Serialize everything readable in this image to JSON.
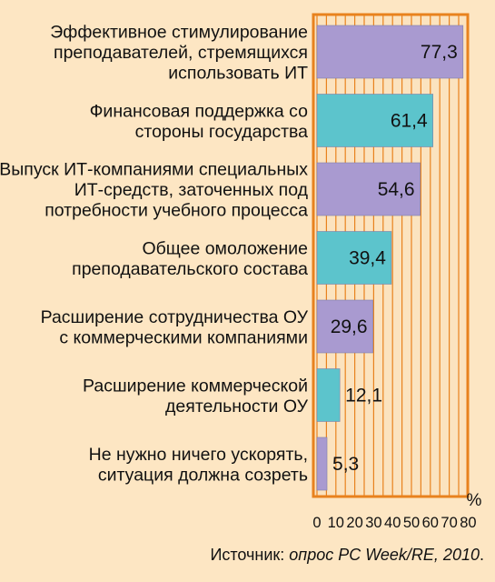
{
  "chart_data": {
    "type": "bar",
    "orientation": "horizontal",
    "categories": [
      [
        "Эффективное стимулирование",
        "преподавателей, стремящихся",
        "использовать ИТ"
      ],
      [
        "Финансовая поддержка со",
        "стороны государства"
      ],
      [
        "Выпуск ИТ-компаниями специальных",
        "ИТ-средств, заточенных под",
        "потребности учебного процесса"
      ],
      [
        "Общее омоложение",
        "преподавательского состава"
      ],
      [
        "Расширение сотрудничества ОУ",
        "с коммерческими компаниями"
      ],
      [
        "Расширение коммерческой",
        "деятельности ОУ"
      ],
      [
        "Не нужно ничего ускорять,",
        "ситуация должна созреть"
      ]
    ],
    "values": [
      77.3,
      61.4,
      54.6,
      39.4,
      29.6,
      12.1,
      5.3
    ],
    "value_labels": [
      "77,3",
      "61,4",
      "54,6",
      "39,4",
      "29,6",
      "12,1",
      "5,3"
    ],
    "bar_colors": [
      "#a99ad0",
      "#5cc4cc",
      "#a99ad0",
      "#5cc4cc",
      "#a99ad0",
      "#5cc4cc",
      "#a99ad0"
    ],
    "xlim": [
      0,
      80
    ],
    "xticks": [
      0,
      10,
      20,
      30,
      40,
      50,
      60,
      70,
      80
    ],
    "xunit": "%",
    "grid": true,
    "colors": {
      "background": "#fde6c3",
      "plot_background": "#fbe3bf",
      "frame": "#e8821e",
      "grid": "#e8821e"
    }
  },
  "source": {
    "prefix": "Источник: ",
    "text": "опрос PC Week/RE, 2010",
    "suffix": "."
  }
}
